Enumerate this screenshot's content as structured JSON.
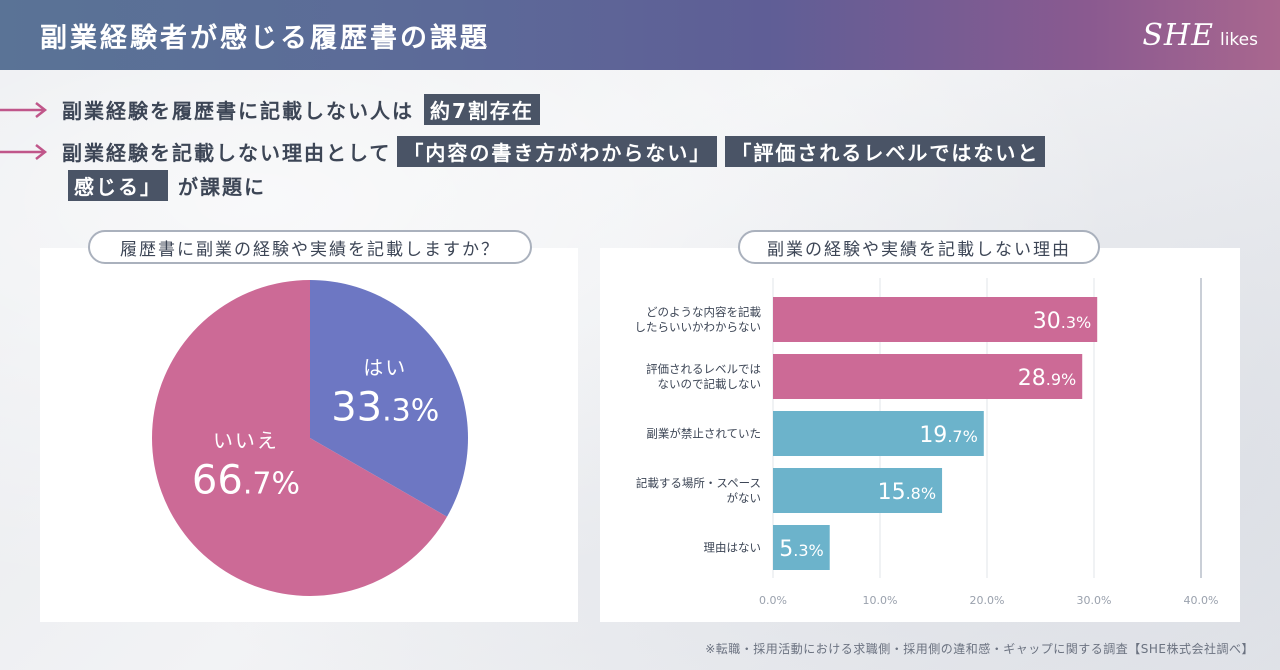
{
  "header": {
    "title": "副業経験者が感じる履歴書の課題",
    "logo_main": "SHE",
    "logo_sub": "likes"
  },
  "bullets": {
    "line1_text": "副業経験を履歴書に記載しない人は",
    "line1_highlight": "約7割存在",
    "line2_text": "副業経験を記載しない理由として",
    "line2_highlight1": "「内容の書き方がわからない」",
    "line2_highlight2": "「評価されるレベルではないと",
    "line3_highlight": "感じる」",
    "line3_text": "が課題に"
  },
  "colors": {
    "pink": "#cc6a96",
    "blue": "#6d77c3",
    "teal": "#6cb3cb",
    "arrow": "#c0568a"
  },
  "chart_data": [
    {
      "type": "pie",
      "title": "履歴書に副業の経験や実績を記載しますか？",
      "slices": [
        {
          "label": "はい",
          "value": 33.3,
          "display": "33.3%"
        },
        {
          "label": "いいえ",
          "value": 66.7,
          "display": "66.7%"
        }
      ]
    },
    {
      "type": "bar",
      "orientation": "horizontal",
      "title": "副業の経験や実績を記載しない理由",
      "categories": [
        [
          "どのような内容を記載",
          "したらいいかわからない"
        ],
        [
          "評価されるレベルでは",
          "ないので記載しない"
        ],
        [
          "副業が禁止されていた"
        ],
        [
          "記載する場所・スペース",
          "がない"
        ],
        [
          "理由はない"
        ]
      ],
      "values": [
        30.3,
        28.9,
        19.7,
        15.8,
        5.3
      ],
      "value_labels": [
        "30.3%",
        "28.9%",
        "19.7%",
        "15.8%",
        "5.3%"
      ],
      "xlim": [
        0,
        40
      ],
      "ticks": [
        "0.0%",
        "10.0%",
        "20.0%",
        "30.0%",
        "40.0%"
      ]
    }
  ],
  "footnote": "※転職・採用活動における求職側・採用側の違和感・ギャップに関する調査【SHE株式会社調べ】"
}
